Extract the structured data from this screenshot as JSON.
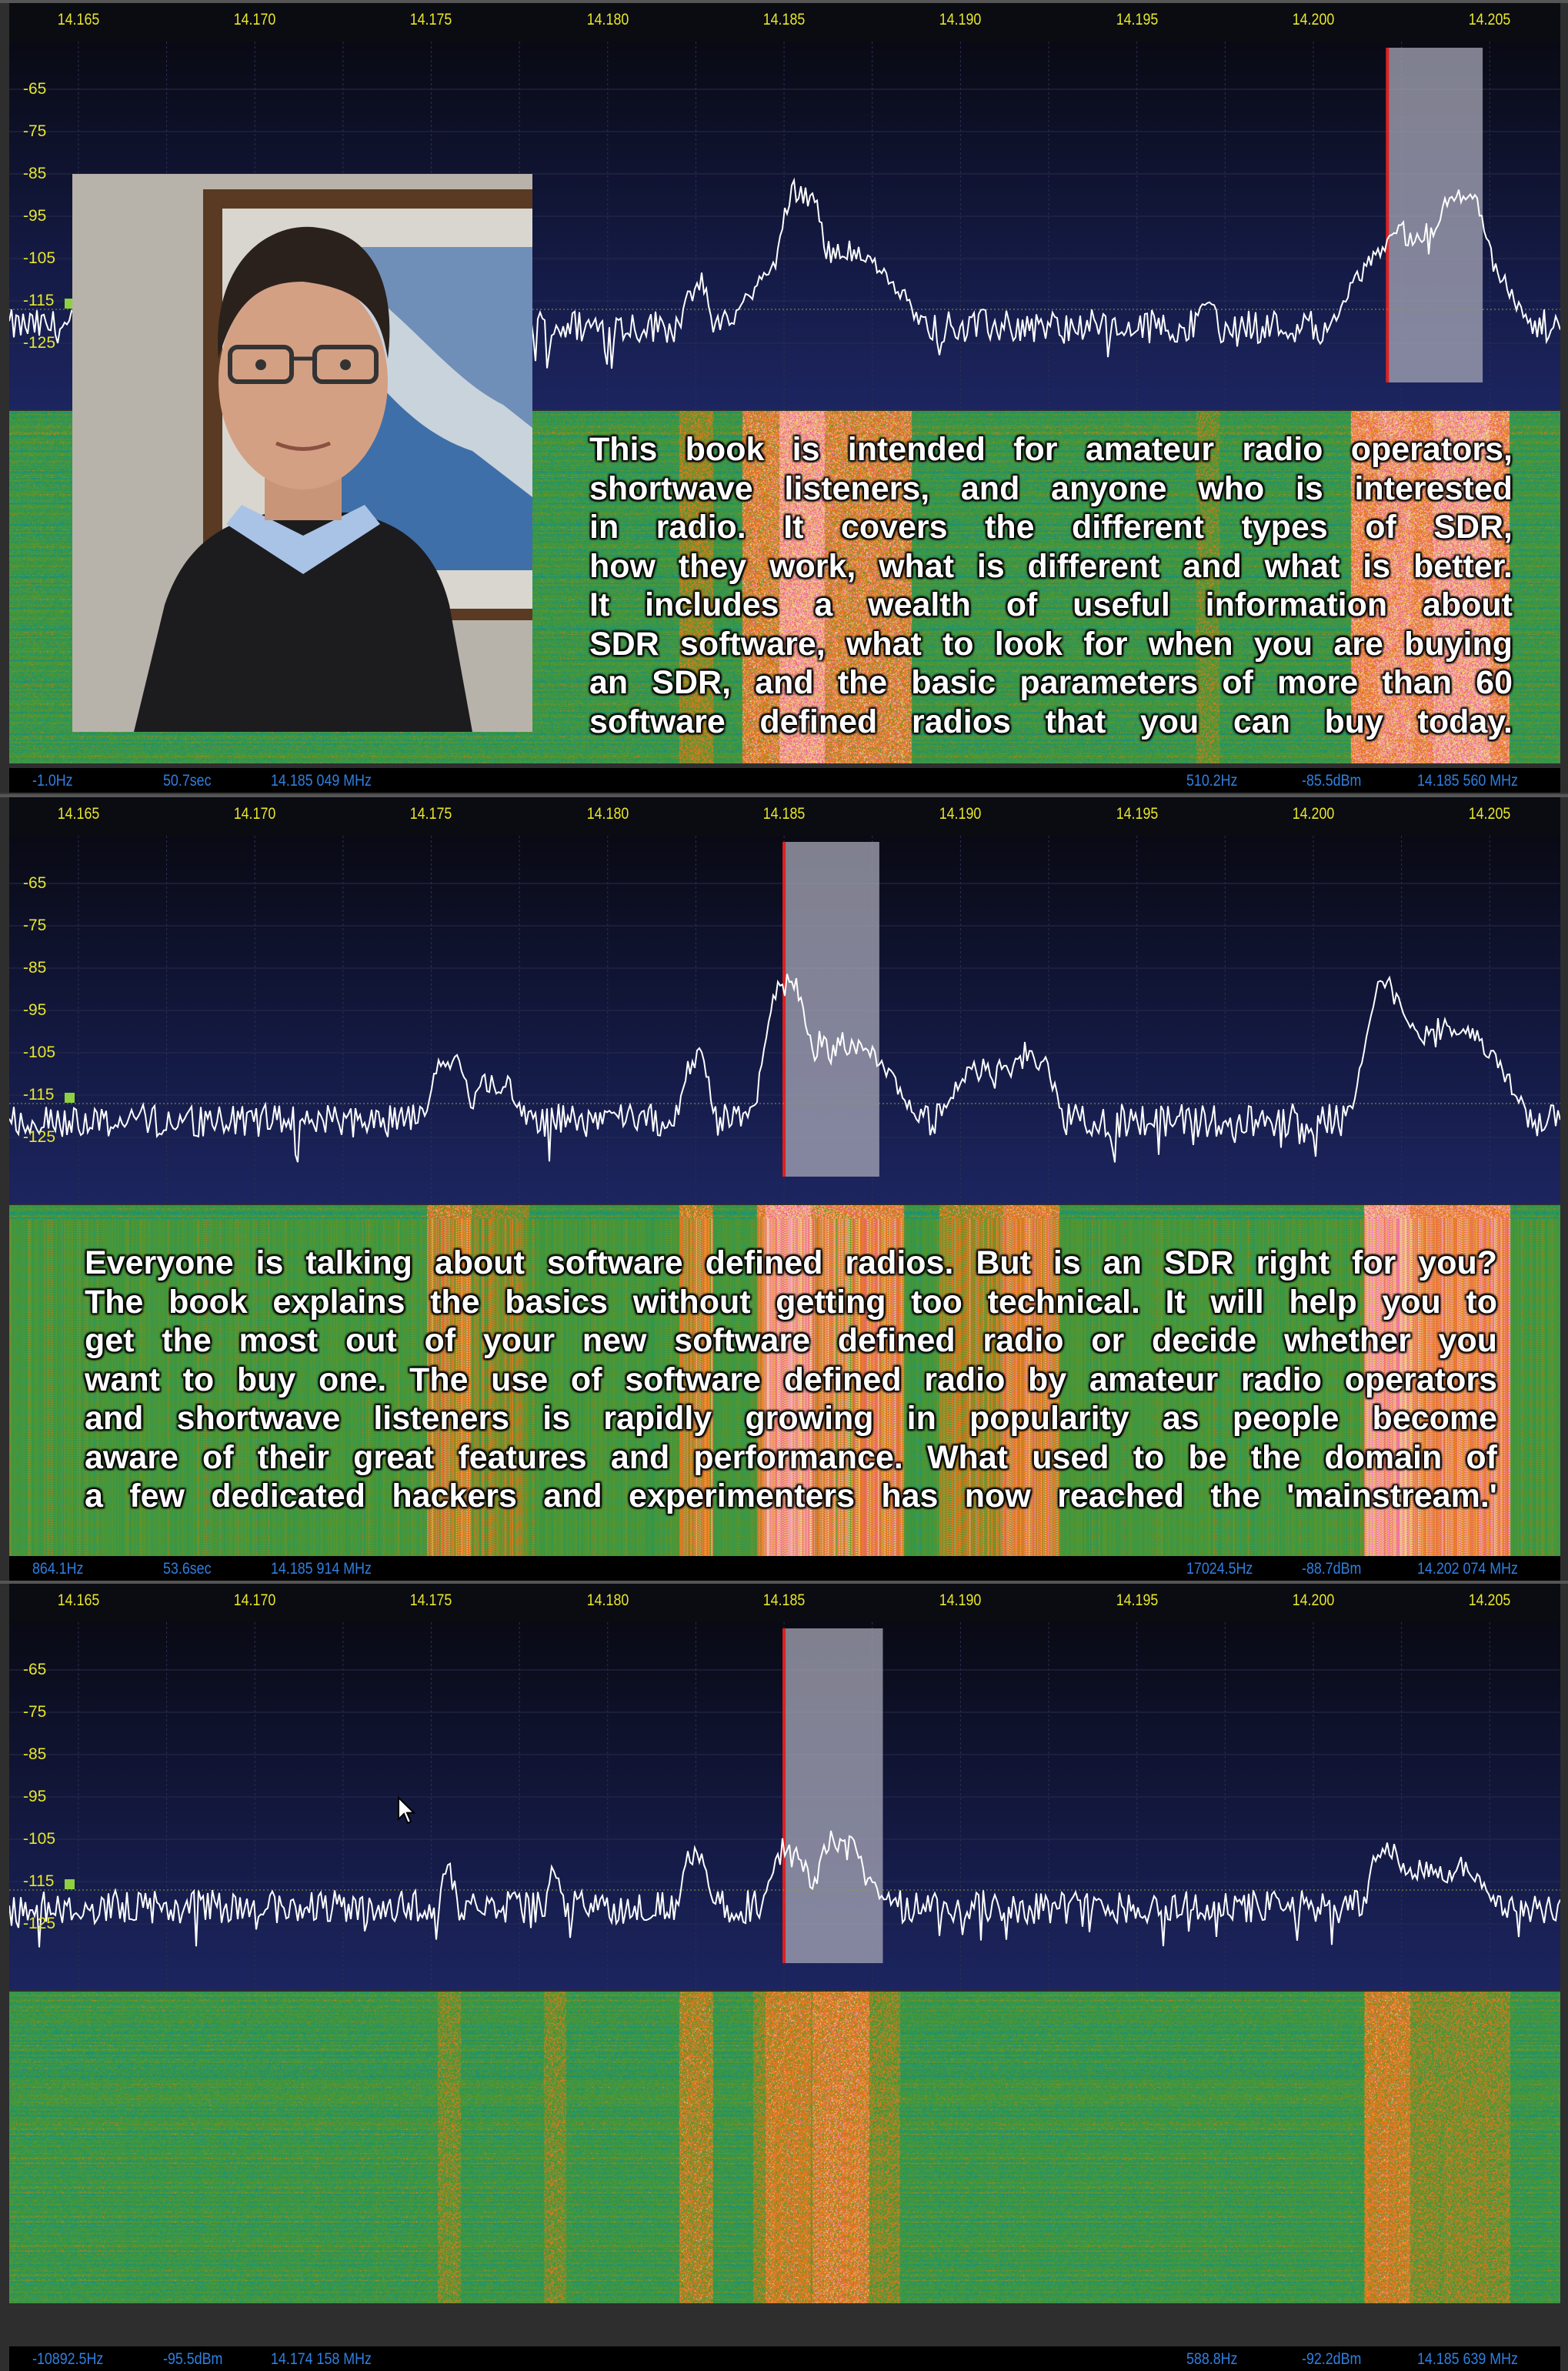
{
  "frequency_axis": {
    "ticks": [
      "14.165",
      "14.170",
      "14.175",
      "14.180",
      "14.185",
      "14.190",
      "14.195",
      "14.200",
      "14.205"
    ],
    "range_mhz": [
      14.16304,
      14.207
    ]
  },
  "level_axis": {
    "ticks": [
      "-65",
      "-75",
      "-85",
      "-95",
      "-105",
      "-115",
      "-125"
    ],
    "unit": "dB"
  },
  "colors": {
    "tick_label": "#e6e62a",
    "status_text": "#2f7fe0",
    "trace": "#ffffff",
    "tune_line": "#e02020",
    "passband": "#9a9aa8"
  },
  "panels": [
    {
      "status_left": [
        "-1.0Hz",
        "50.7sec",
        "14.185 049 MHz"
      ],
      "status_right": [
        "510.2Hz",
        "-85.5dBm",
        "14.185 560 MHz"
      ],
      "tuned_mhz": 14.2021,
      "passband_mhz": [
        14.2021,
        14.2048
      ],
      "noise_db": -121,
      "signals": [
        {
          "f": 14.1825,
          "bw": 0.0003,
          "db": -108
        },
        {
          "f": 14.1855,
          "bw": 0.0004,
          "db": -86
        },
        {
          "f": 14.1862,
          "bw": 0.0015,
          "db": -101
        },
        {
          "f": 14.197,
          "bw": 0.0002,
          "db": -112
        },
        {
          "f": 14.2023,
          "bw": 0.0003,
          "db": -97
        },
        {
          "f": 14.2033,
          "bw": 0.0014,
          "db": -97
        },
        {
          "f": 14.2042,
          "bw": 0.0005,
          "db": -87
        }
      ],
      "overlay_text": [
        "This book is intended for amateur radio operators,",
        "shortwave listeners, and anyone who is interested",
        "in radio. It covers the different types of SDR,",
        "how they work, what is different and what is better.",
        "It includes a wealth of useful information about",
        "SDR software, what to look for when you are buying",
        "an SDR, and the basic parameters of more than 60",
        "software defined radios that you can buy today."
      ]
    },
    {
      "status_left": [
        "864.1Hz",
        "53.6sec",
        "14.185 914 MHz"
      ],
      "status_right": [
        "17024.5Hz",
        "-88.7dBm",
        "14.202 074 MHz"
      ],
      "tuned_mhz": 14.185,
      "passband_mhz": [
        14.185,
        14.1877
      ],
      "noise_db": -121,
      "signals": [
        {
          "f": 14.1755,
          "bw": 0.0004,
          "db": -104
        },
        {
          "f": 14.1768,
          "bw": 0.0006,
          "db": -110
        },
        {
          "f": 14.1825,
          "bw": 0.0003,
          "db": -104
        },
        {
          "f": 14.1851,
          "bw": 0.0004,
          "db": -87
        },
        {
          "f": 14.1863,
          "bw": 0.0013,
          "db": -100
        },
        {
          "f": 14.191,
          "bw": 0.001,
          "db": -106
        },
        {
          "f": 14.192,
          "bw": 0.0005,
          "db": -103
        },
        {
          "f": 14.2021,
          "bw": 0.0004,
          "db": -87
        },
        {
          "f": 14.2035,
          "bw": 0.0013,
          "db": -97
        }
      ],
      "overlay_text": [
        "Everyone is talking about software defined radios. But is an SDR right for you?",
        "The book explains the basics without getting too technical. It will help you to",
        "get the most out of your new software defined radio or decide whether you",
        "want to buy one. The use of software defined radio by amateur radio operators",
        "and shortwave listeners is rapidly growing in popularity as people become",
        "aware of their great features and performance. What used to be the domain of",
        "a few dedicated hackers and experimenters has now reached the 'mainstream.'"
      ]
    },
    {
      "status_left": [
        "-10892.5Hz",
        "-95.5dBm",
        "14.174 158 MHz"
      ],
      "status_right": [
        "588.8Hz",
        "-92.2dBm",
        "14.185 639 MHz"
      ],
      "tuned_mhz": 14.185,
      "passband_mhz": [
        14.185,
        14.1878
      ],
      "noise_db": -121,
      "signals": [
        {
          "f": 14.1755,
          "bw": 0.0002,
          "db": -111
        },
        {
          "f": 14.1785,
          "bw": 0.0002,
          "db": -111
        },
        {
          "f": 14.1825,
          "bw": 0.0003,
          "db": -106
        },
        {
          "f": 14.1851,
          "bw": 0.0004,
          "db": -105
        },
        {
          "f": 14.1866,
          "bw": 0.0005,
          "db": -103
        },
        {
          "f": 14.1862,
          "bw": 0.0013,
          "db": -110
        },
        {
          "f": 14.2021,
          "bw": 0.0004,
          "db": -105
        },
        {
          "f": 14.2035,
          "bw": 0.0013,
          "db": -110
        }
      ],
      "overlay_text": []
    }
  ]
}
